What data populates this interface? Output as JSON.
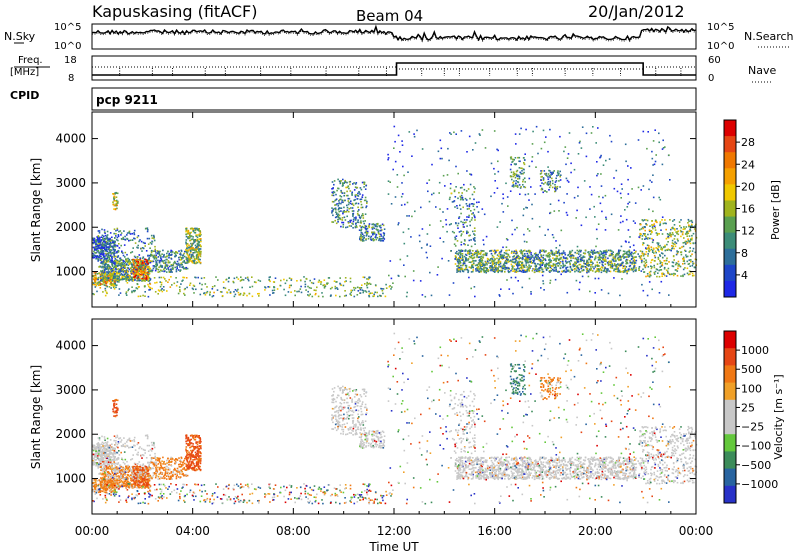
{
  "header": {
    "station": "Kapuskasing (fitACF)",
    "beam": "Beam 04",
    "date": "20/Jan/2012",
    "cpid_label": "CPID",
    "cpid_value": "pcp 9211"
  },
  "noise_panel": {
    "left_label": "N.Sky",
    "right_label": "N.Search",
    "left_ticks": [
      "10^5",
      "10^0"
    ],
    "right_ticks": [
      "10^5",
      "10^0"
    ]
  },
  "freq_panel": {
    "left_label_line1": "Freq.",
    "left_label_line2": "[MHz]",
    "right_label": "Nave",
    "left_ticks": [
      "18",
      "8"
    ],
    "right_ticks": [
      "60",
      "0"
    ]
  },
  "chart_data": [
    {
      "type": "heatmap",
      "name_label": "power-panel",
      "ylabel": "Slant Range [km]",
      "yticks": [
        1000,
        2000,
        3000,
        4000
      ],
      "ylim": [
        200,
        4600
      ],
      "xlim_hours": [
        0,
        24
      ],
      "colorbar_label": "Power [dB]",
      "colorbar_ticks": [
        "28",
        "24",
        "20",
        "16",
        "12",
        "8",
        "4"
      ],
      "colors": [
        "#1e28e6",
        "#1e46c8",
        "#2d6e9a",
        "#3c8c78",
        "#5aa050",
        "#a0b41e",
        "#f0c800",
        "#f5a000",
        "#f07800",
        "#e64614",
        "#dc0000"
      ]
    },
    {
      "type": "heatmap",
      "name_label": "velocity-panel",
      "ylabel": "Slant Range [km]",
      "yticks": [
        1000,
        2000,
        3000,
        4000
      ],
      "ylim": [
        200,
        4600
      ],
      "xlim_hours": [
        0,
        24
      ],
      "colorbar_label": "Velocity [m s⁻¹]",
      "colorbar_ticks": [
        "1000",
        "500",
        "100",
        "25",
        "−25",
        "−100",
        "−500",
        "−1000"
      ],
      "colors": [
        "#2832c8",
        "#2864a0",
        "#3c8c5a",
        "#64c83c",
        "#c8c8c8",
        "#c8c8c8",
        "#f0a028",
        "#f07814",
        "#e64614",
        "#dc0000"
      ]
    }
  ],
  "x_axis": {
    "tick_labels": [
      "00:00",
      "04:00",
      "08:00",
      "12:00",
      "16:00",
      "20:00",
      "00:00"
    ],
    "label": "Time UT"
  }
}
